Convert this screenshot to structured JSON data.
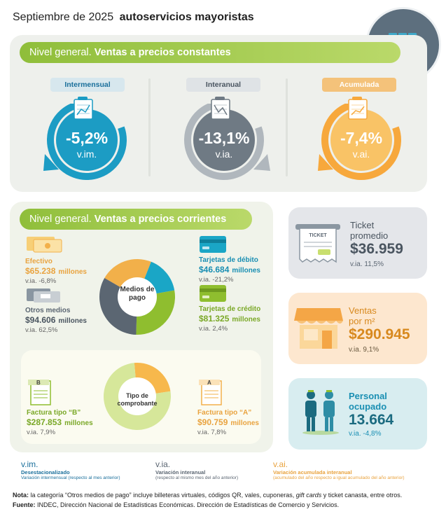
{
  "header": {
    "date_label": "Septiembre de 2025",
    "title": "autoservicios mayoristas"
  },
  "constant_prices": {
    "banner_prefix": "Nivel general.",
    "banner_title": "Ventas a precios constantes",
    "indicators": [
      {
        "tag": "Intermensual",
        "value": "-5,2%",
        "unit": "v.im.",
        "color": "#1c9cc4",
        "icon": "chart-sheet-icon"
      },
      {
        "tag": "Interanual",
        "value": "-13,1%",
        "unit": "v.ia.",
        "color": "#6f7a84",
        "icon": "chart-sheet-icon"
      },
      {
        "tag": "Acumulada",
        "value": "-7,4%",
        "unit": "v.ai.",
        "color": "#f8b84f",
        "icon": "chart-sheet-icon"
      }
    ]
  },
  "current_prices": {
    "banner_prefix": "Nivel general.",
    "banner_title": "Ventas a precios corrientes",
    "payment_center_label": "Medios de pago",
    "payment_methods": [
      {
        "label": "Efectivo",
        "value": "$65.238",
        "unit": "millones",
        "variation": "v.ia. -6,8%",
        "color": "#f2b04a"
      },
      {
        "label": "Tarjetas de débito",
        "value": "$46.684",
        "unit": "millones",
        "variation": "v.ia. -21,2%",
        "color": "#1aa6c6"
      },
      {
        "label": "Tarjetas de crédito",
        "value": "$81.325",
        "unit": "millones",
        "variation": "v.ia. 2,4%",
        "color": "#8fbe2f"
      },
      {
        "label": "Otros medios",
        "value": "$94.606",
        "unit": "millones",
        "variation": "v.ia. 62,5%",
        "color": "#5b6672"
      }
    ],
    "voucher_center_label": "Tipo de comprobante",
    "voucher_types": [
      {
        "label": "Factura tipo “B”",
        "value": "$287.853",
        "unit": "millones",
        "variation": "v.ia. 7,9%",
        "color": "#d6e79a"
      },
      {
        "label": "Factura tipo “A”",
        "value": "$90.759",
        "unit": "millones",
        "variation": "v.ia. 7,8%",
        "color": "#f7b84c"
      }
    ]
  },
  "cards": {
    "ticket": {
      "label_line1": "Ticket",
      "label_line2": "promedio",
      "value": "$36.959",
      "variation": "v.ia. 11,5%",
      "icon_text": "TICKET"
    },
    "sales": {
      "label_line1": "Ventas",
      "label_line2": "por m²",
      "value": "$290.945",
      "variation": "v.ia. 9,1%"
    },
    "staff": {
      "label_line1": "Personal",
      "label_line2": "ocupado",
      "value": "13.664",
      "variation": "v.ia. -4,8%"
    }
  },
  "legend": [
    {
      "code": "v.im.",
      "term": "Desestacionalizado",
      "desc": "Variación intermensual (respecto al mes anterior)",
      "color": "#1a6f9b"
    },
    {
      "code": "v.ia.",
      "term": "Variación interanual",
      "desc": "(respecto al mismo mes del año anterior)",
      "color": "#5b6672"
    },
    {
      "code": "v.ai.",
      "term": "Variación acumulada interanual",
      "desc": "(acumulado del año respecto a igual acumulado del año anterior)",
      "color": "#e9a33f"
    }
  ],
  "footer": {
    "note_label": "Nota:",
    "note_text_1": "la categoría “Otros medios de pago” incluye billeteras virtuales, códigos QR, vales, cuponeras,",
    "note_italic": "gift cards",
    "note_text_2": "y ticket canasta, entre otros.",
    "source_label": "Fuente:",
    "source_text": "INDEC, Dirección Nacional de Estadísticas Económicas. Dirección de Estadísticas de Comercio y Servicios."
  }
}
